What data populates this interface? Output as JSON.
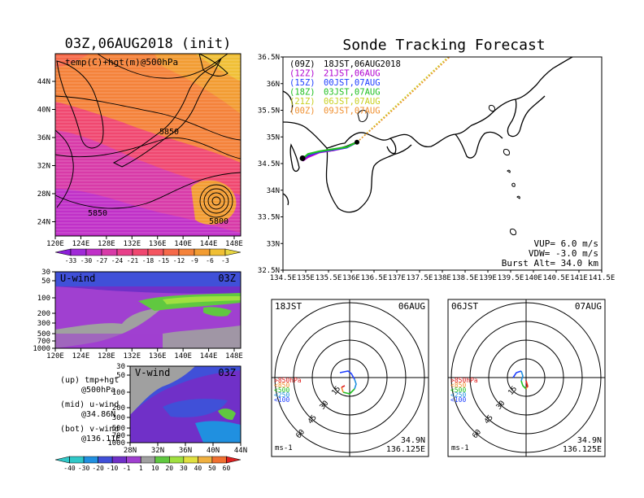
{
  "titles": {
    "map_title": "03Z,06AUG2018 (init)",
    "map_subtitle": "temp(C)+hgt(m)@500hPa",
    "track_title": "Sonde Tracking Forecast"
  },
  "map500": {
    "lon_labels": [
      "120E",
      "124E",
      "128E",
      "132E",
      "136E",
      "140E",
      "144E",
      "148E"
    ],
    "lat_labels": [
      "44N",
      "40N",
      "36N",
      "32N",
      "28N",
      "24N"
    ],
    "contour_labels": [
      "5850",
      "5850",
      "5800"
    ],
    "colorbar_labels": [
      "-33",
      "-30",
      "-27",
      "-24",
      "-21",
      "-18",
      "-15",
      "-12",
      "-9",
      "-6",
      "-3"
    ],
    "colors": [
      "#8b1fd9",
      "#a029d8",
      "#c030c8",
      "#d83aa8",
      "#e8408a",
      "#f04870",
      "#f45560",
      "#f66a4a",
      "#f4823a",
      "#f29c32",
      "#f0bf35",
      "#e8d540"
    ]
  },
  "uwind": {
    "title": "U-wind",
    "time": "03Z",
    "pressure_labels": [
      "30",
      "50",
      "100",
      "200",
      "300",
      "500",
      "700",
      "1000"
    ],
    "lon_labels": [
      "120E",
      "124E",
      "128E",
      "132E",
      "136E",
      "140E",
      "144E",
      "148E"
    ]
  },
  "vwind": {
    "title": "V-wind",
    "time": "03Z",
    "pressure_labels": [
      "30",
      "50",
      "100",
      "200",
      "300",
      "500",
      "700",
      "1000"
    ],
    "lat_labels": [
      "28N",
      "32N",
      "36N",
      "40N",
      "44N"
    ]
  },
  "legend_text": {
    "up1": "(up) tmp+hgt",
    "up2": "@500hPa",
    "mid1": "(mid) u-wind",
    "mid2": "@34.86N",
    "bot1": "(bot) v-wind",
    "bot2": "@136.11E"
  },
  "wind_colorbar": {
    "labels": [
      "-40",
      "-30",
      "-20",
      "-10",
      "-1",
      "1",
      "10",
      "20",
      "30",
      "40",
      "50",
      "60"
    ],
    "colors": [
      "#30c8c8",
      "#2090e0",
      "#4050d8",
      "#7030c8",
      "#a040d0",
      "#a0a0a0",
      "#60c840",
      "#a0e040",
      "#e0e040",
      "#f0b040",
      "#f07030",
      "#e02020"
    ]
  },
  "track": {
    "lon_labels": [
      "134.5E",
      "135E",
      "135.5E",
      "136E",
      "136.5E",
      "137E",
      "137.5E",
      "138E",
      "138.5E",
      "139E",
      "139.5E",
      "140E",
      "140.5E",
      "141E",
      "141.5E"
    ],
    "lat_labels": [
      "36.5N",
      "36N",
      "35.5N",
      "35N",
      "34.5N",
      "34N",
      "33.5N",
      "33N",
      "32.5N"
    ],
    "launches": [
      {
        "label": "(09Z)",
        "time": "18JST,06AUG2018",
        "color": "#000000"
      },
      {
        "label": "(12Z)",
        "time": "21JST,06AUG",
        "color": "#b000d0"
      },
      {
        "label": "(15Z)",
        "time": "00JST,07AUG",
        "color": "#2040ff"
      },
      {
        "label": "(18Z)",
        "time": "03JST,07AUG",
        "color": "#20c020"
      },
      {
        "label": "(21Z)",
        "time": "06JST,07AUG",
        "color": "#c8d020"
      },
      {
        "label": "(00Z)",
        "time": "09JST,07AUG",
        "color": "#f09030"
      }
    ],
    "vup": "VUP= 6.0 m/s",
    "vdw": "VDW= -3.0 m/s",
    "burst": "Burst Alt= 34.0 km"
  },
  "hodo_left": {
    "time": "18JST",
    "date": "06AUG",
    "ring_labels": [
      "15",
      "30",
      "45",
      "60"
    ],
    "levels": [
      ">850hPa",
      "<850",
      "<500",
      "<250",
      "<100"
    ],
    "level_colors": [
      "#e02020",
      "#f09030",
      "#20c020",
      "#2090e0",
      "#2040ff"
    ],
    "lat": "34.9N",
    "lon": "136.125E",
    "unit": "ms-1"
  },
  "hodo_right": {
    "time": "06JST",
    "date": "07AUG",
    "ring_labels": [
      "15",
      "30",
      "45",
      "60"
    ],
    "levels": [
      ">850hPa",
      "<850",
      "<500",
      "<250",
      "<100"
    ],
    "level_colors": [
      "#e02020",
      "#f09030",
      "#20c020",
      "#2090e0",
      "#2040ff"
    ],
    "lat": "34.9N",
    "lon": "136.125E",
    "unit": "ms-1"
  },
  "chart_data": [
    {
      "type": "heatmap",
      "title": "03Z,06AUG2018 (init)",
      "subtitle": "temp(C)+hgt(m)@500hPa",
      "xlabel": "",
      "ylabel": "",
      "x_ticks": [
        "120E",
        "124E",
        "128E",
        "132E",
        "136E",
        "140E",
        "144E",
        "148E"
      ],
      "y_ticks": [
        "44N",
        "40N",
        "36N",
        "32N",
        "28N",
        "24N"
      ],
      "color_levels": [
        -33,
        -30,
        -27,
        -24,
        -21,
        -18,
        -15,
        -12,
        -9,
        -6,
        -3
      ],
      "contour_labels_m": [
        5850,
        5850,
        5800
      ]
    },
    {
      "type": "heatmap",
      "title": "U-wind",
      "x_ticks": [
        "120E",
        "124E",
        "128E",
        "132E",
        "136E",
        "140E",
        "144E",
        "148E"
      ],
      "y_ticks_hPa": [
        30,
        50,
        100,
        200,
        300,
        500,
        700,
        1000
      ],
      "color_levels": [
        -40,
        -30,
        -20,
        -10,
        -1,
        1,
        10,
        20,
        30,
        40,
        50,
        60
      ]
    },
    {
      "type": "heatmap",
      "title": "V-wind",
      "x_ticks": [
        "28N",
        "32N",
        "36N",
        "40N",
        "44N"
      ],
      "y_ticks_hPa": [
        30,
        50,
        100,
        200,
        300,
        500,
        700,
        1000
      ],
      "color_levels": [
        -40,
        -30,
        -20,
        -10,
        -1,
        1,
        10,
        20,
        30,
        40,
        50,
        60
      ]
    },
    {
      "type": "line",
      "title": "Sonde Tracking Forecast",
      "xlim": [
        134.5,
        141.5
      ],
      "ylim": [
        32.5,
        36.5
      ],
      "launch_point": {
        "x": 136.125,
        "y": 34.9
      },
      "series": [
        {
          "name": "(09Z)",
          "x": [
            136.125,
            135.9,
            135.6,
            135.3,
            135.05,
            134.95
          ],
          "y": [
            34.9,
            34.82,
            34.75,
            34.72,
            34.65,
            34.6
          ]
        },
        {
          "name": "(12Z)",
          "x": [
            136.125,
            135.9,
            135.6,
            135.3,
            135.05,
            134.93
          ],
          "y": [
            34.9,
            34.8,
            34.75,
            34.71,
            34.62,
            34.55
          ]
        },
        {
          "name": "(15Z)",
          "x": [
            136.125,
            135.9,
            135.6,
            135.3,
            135.05,
            134.95
          ],
          "y": [
            34.9,
            34.8,
            34.76,
            34.72,
            34.66,
            34.6
          ]
        },
        {
          "name": "(18Z)",
          "x": [
            136.125,
            135.9,
            135.6,
            135.3,
            135.05,
            134.97
          ],
          "y": [
            34.9,
            34.81,
            34.77,
            34.73,
            34.68,
            34.62
          ]
        },
        {
          "name": "(21Z)",
          "x": [
            136.125,
            136.5,
            137,
            137.5,
            138,
            138.5
          ],
          "y": [
            34.9,
            35.2,
            35.6,
            36.0,
            36.4,
            36.8
          ]
        },
        {
          "name": "(00Z)",
          "x": [
            136.125,
            136.5,
            137,
            137.5,
            138,
            138.5
          ],
          "y": [
            34.9,
            35.18,
            35.57,
            35.97,
            36.37,
            36.77
          ]
        }
      ]
    }
  ]
}
